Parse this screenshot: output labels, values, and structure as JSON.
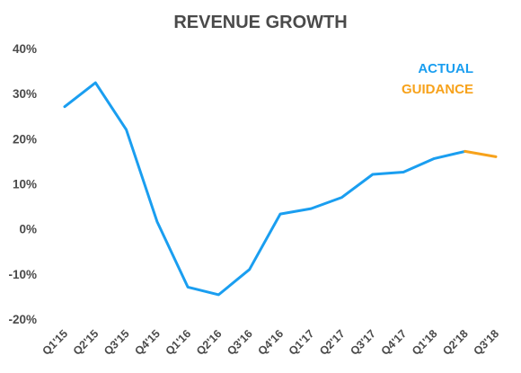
{
  "chart_data": {
    "type": "line",
    "title": "REVENUE GROWTH",
    "xlabel": "",
    "ylabel": "",
    "categories": [
      "Q1'15",
      "Q2'15",
      "Q3'15",
      "Q4'15",
      "Q1'16",
      "Q2'16",
      "Q3'16",
      "Q4'16",
      "Q1'17",
      "Q2'17",
      "Q3'17",
      "Q4'17",
      "Q1'18",
      "Q2'18",
      "Q3'18"
    ],
    "y_ticks": [
      "40%",
      "30%",
      "20%",
      "10%",
      "0%",
      "-10%",
      "-20%"
    ],
    "ylim": [
      -20,
      40
    ],
    "y_unit": "%",
    "grid": false,
    "legend_position": "top-right",
    "series": [
      {
        "name": "ACTUAL",
        "color": "#1a9ef0",
        "values": [
          27.1,
          32.4,
          22.0,
          1.6,
          -12.9,
          -14.6,
          -9.0,
          3.3,
          4.5,
          7.0,
          12.1,
          12.6,
          15.6,
          17.2,
          null
        ]
      },
      {
        "name": "GUIDANCE",
        "color": "#f7a21b",
        "values": [
          null,
          null,
          null,
          null,
          null,
          null,
          null,
          null,
          null,
          null,
          null,
          null,
          null,
          17.2,
          16.0
        ]
      }
    ]
  }
}
